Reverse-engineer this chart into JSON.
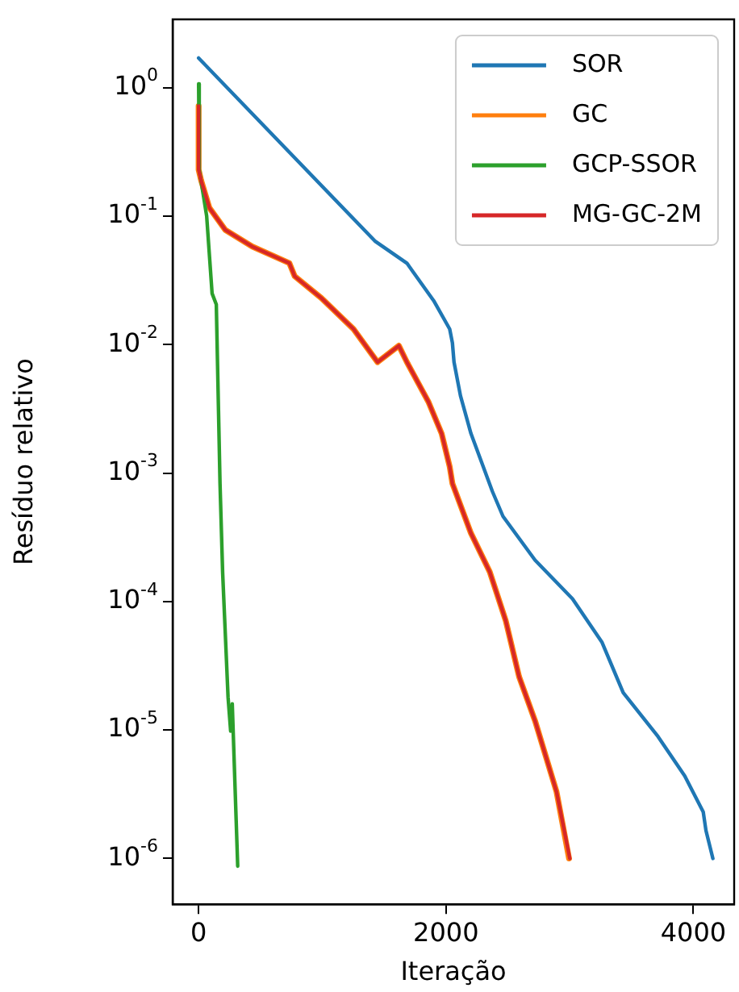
{
  "chart_data": {
    "type": "line",
    "xlabel": "Iteração",
    "ylabel": "Resíduo relativo",
    "log": "y",
    "xlim": [
      -210,
      4330
    ],
    "xticks": [
      0,
      2000,
      4000
    ],
    "ylim": [
      4.4e-07,
      3.4
    ],
    "yticks": [
      {
        "value": 1,
        "label": "10$^{0}$"
      },
      {
        "value": 0.1,
        "label": "10$^{-1}$"
      },
      {
        "value": 0.01,
        "label": "10$^{-2}$"
      },
      {
        "value": 0.001,
        "label": "10$^{-3}$"
      },
      {
        "value": 0.0001,
        "label": "10$^{-4}$"
      },
      {
        "value": 1e-05,
        "label": "10$^{-5}$"
      },
      {
        "value": 1e-06,
        "label": "10$^{-6}$"
      }
    ],
    "grid": false,
    "legend": "top right",
    "marker": "none",
    "line_style": "solid",
    "series": [
      {
        "name": "SOR",
        "color": "#1f77b4",
        "x": [
          0,
          1425,
          1684,
          1900,
          2030,
          2052,
          2065,
          2117,
          2202,
          2375,
          2461,
          2720,
          3023,
          3262,
          3433,
          3714,
          3930,
          4080,
          4102,
          4158
        ],
        "values": [
          1.7,
          0.064,
          0.043,
          0.022,
          0.0132,
          0.0103,
          0.0073,
          0.004,
          0.00203,
          0.00072,
          0.00046,
          0.00021,
          0.000105,
          4.8e-05,
          1.95e-05,
          8.9e-06,
          4.4e-06,
          2.3e-06,
          1.65e-06,
          1e-06
        ]
      },
      {
        "name": "GC",
        "color": "#ff7f0e",
        "x": [
          0,
          0,
          20,
          87,
          216,
          433,
          734,
          777,
          993,
          1253,
          1447,
          1619,
          1684,
          1857,
          1965,
          2030,
          2052,
          2202,
          2354,
          2483,
          2591,
          2720,
          2894,
          2995
        ],
        "values": [
          0.72,
          0.23,
          0.19,
          0.116,
          0.078,
          0.058,
          0.043,
          0.034,
          0.023,
          0.0132,
          0.0073,
          0.0098,
          0.0073,
          0.0036,
          0.00203,
          0.00112,
          0.00083,
          0.00034,
          0.00017,
          7.1e-05,
          2.6e-05,
          1.18e-05,
          3.3e-06,
          1e-06
        ]
      },
      {
        "name": "GCP-SSOR",
        "color": "#2ca02c",
        "x": [
          0,
          5,
          65,
          109,
          143,
          173,
          194,
          238,
          259,
          272,
          316
        ],
        "values": [
          1.07,
          0.23,
          0.1,
          0.025,
          0.0205,
          0.00083,
          0.00017,
          1.8e-05,
          9.8e-06,
          1.6e-05,
          8.7e-07
        ]
      },
      {
        "name": "MG-GC-2M",
        "color": "#d62728",
        "x": [
          0,
          0,
          20,
          87,
          216,
          433,
          734,
          777,
          993,
          1253,
          1447,
          1619,
          1684,
          1857,
          1965,
          2030,
          2052,
          2202,
          2354,
          2483,
          2591,
          2720,
          2894,
          3001
        ],
        "values": [
          0.72,
          0.23,
          0.19,
          0.116,
          0.078,
          0.058,
          0.043,
          0.034,
          0.023,
          0.0132,
          0.0073,
          0.0098,
          0.0073,
          0.0036,
          0.00203,
          0.00112,
          0.00083,
          0.00034,
          0.00017,
          7.1e-05,
          2.6e-05,
          1.18e-05,
          3.3e-06,
          1e-06
        ]
      }
    ]
  }
}
